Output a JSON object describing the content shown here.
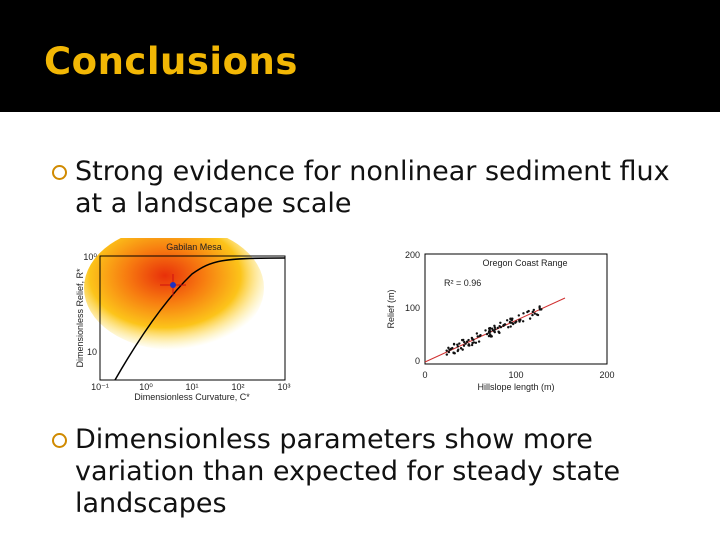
{
  "header": {
    "title": "Conclusions"
  },
  "bullets": [
    {
      "lines": [
        "Strong evidence for nonlinear sediment flux",
        "at a landscape scale"
      ]
    },
    {
      "lines": [
        "Dimensionless parameters show more",
        "variation than expected for steady state",
        "landscapes"
      ]
    }
  ],
  "figures": [
    {
      "title": "Gabilan Mesa",
      "ylabel": "Dimensionless Relief, R*",
      "xlabel": "Dimensionless Curvature, C*",
      "xticks": [
        "10⁻¹",
        "10⁰",
        "10¹",
        "10²",
        "10³"
      ],
      "yticks": [
        "10⁰",
        "10"
      ]
    },
    {
      "title": "Oregon Coast Range",
      "annotation": "R² = 0.96",
      "ylabel": "Relief (m)",
      "xlabel": "Hillslope length (m)",
      "xticks": [
        "0",
        "100",
        "200"
      ],
      "yticks": [
        "200",
        "100",
        "0"
      ]
    }
  ]
}
